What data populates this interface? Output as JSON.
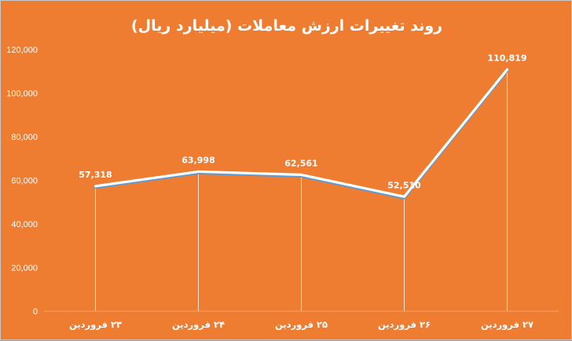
{
  "chart_data": {
    "type": "line",
    "title": "روند تغییرات ارزش معاملات (میلیارد ریال)",
    "categories": [
      "۲۳ فروردین",
      "۲۴ فروردین",
      "۲۵ فروردین",
      "۲۶ فروردین",
      "۲۷ فروردین"
    ],
    "series": [
      {
        "values": [
          57318,
          63998,
          62561,
          52510,
          110819
        ]
      }
    ],
    "data_labels": [
      "57,318",
      "63,998",
      "62,561",
      "52,510",
      "110,819"
    ],
    "yticks": [
      "0",
      "20,000",
      "40,000",
      "60,000",
      "80,000",
      "100,000",
      "120,000"
    ],
    "ylim": [
      0,
      120000
    ],
    "grid": false,
    "drop_lines": true,
    "colors": {
      "background": "#ee7d31",
      "line": "#ffffff",
      "line_shadow": "#5b9bd5",
      "text": "#ffffff"
    }
  }
}
